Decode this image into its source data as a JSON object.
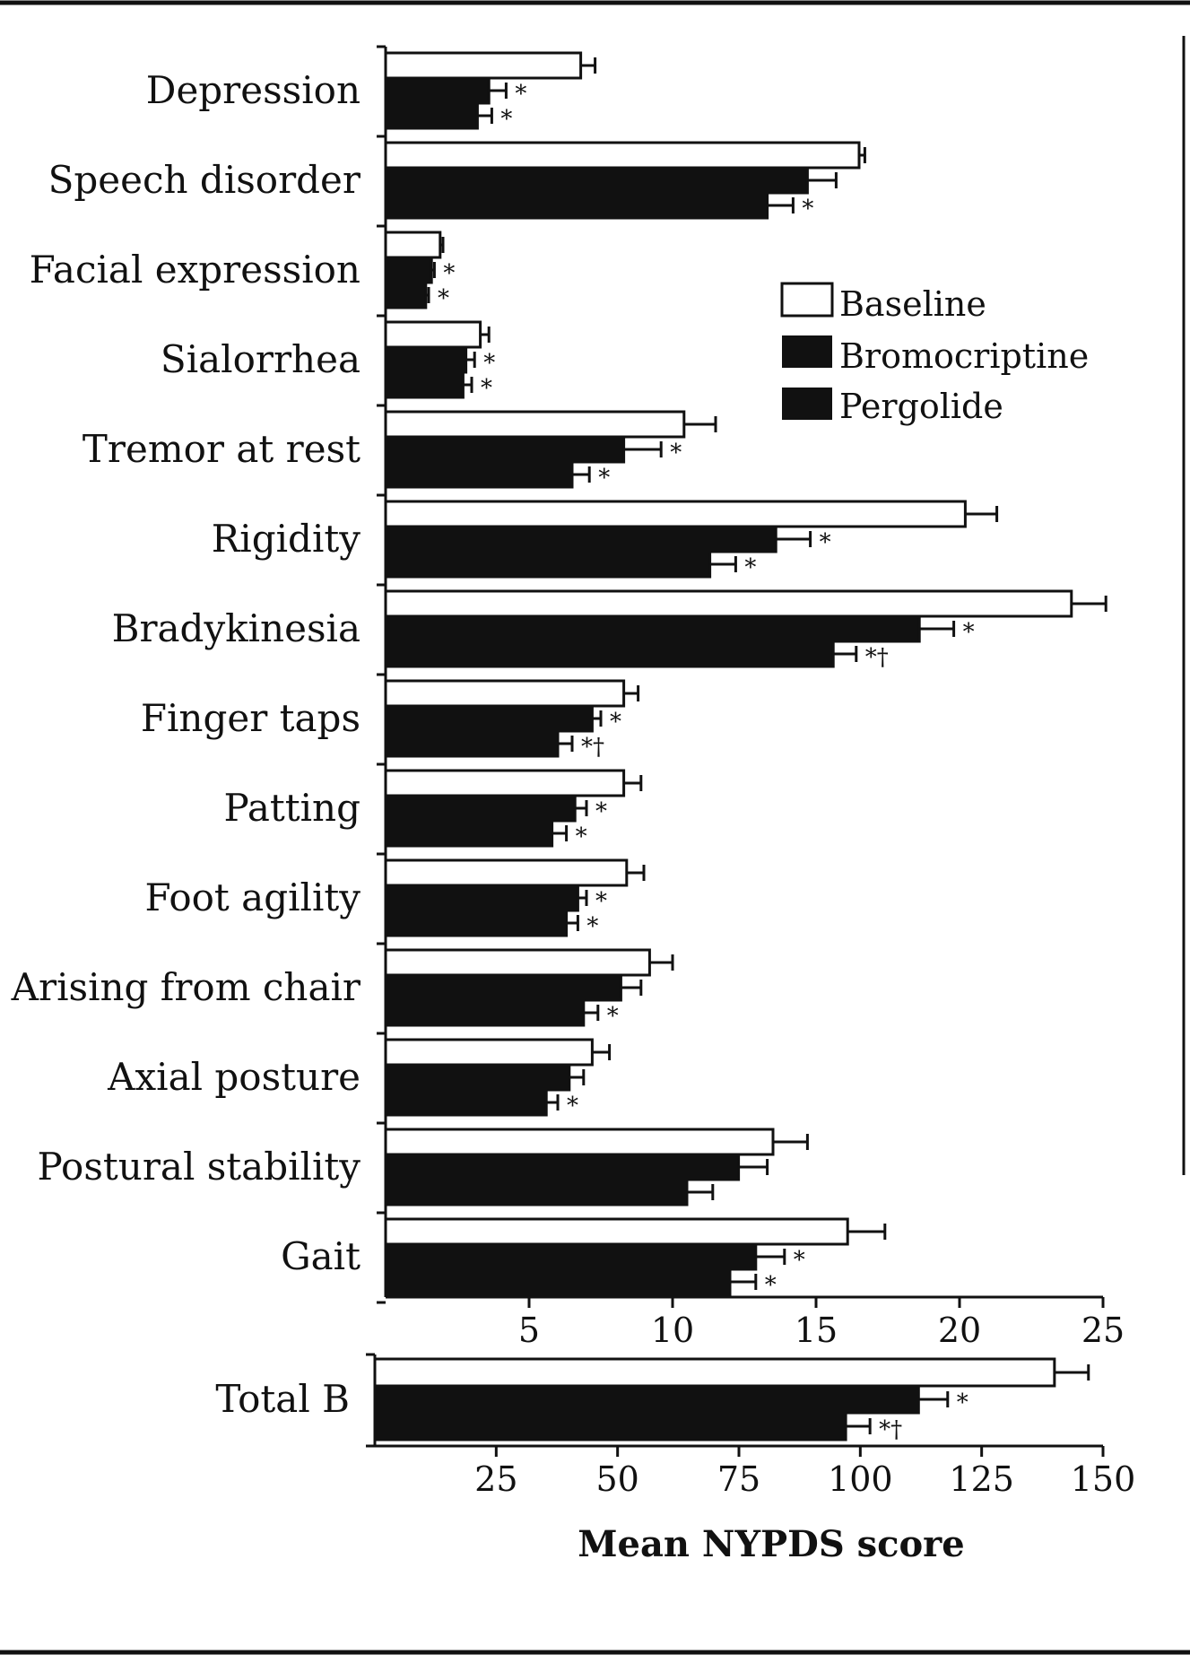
{
  "chart_data": [
    {
      "type": "bar",
      "orientation": "horizontal",
      "categories": [
        "Depression",
        "Speech disorder",
        "Facial expression",
        "Sialorrhea",
        "Tremor at rest",
        "Rigidity",
        "Bradykinesia",
        "Finger taps",
        "Patting",
        "Foot agility",
        "Arising from chair",
        "Axial posture",
        "Postural stability",
        "Gait"
      ],
      "series": [
        {
          "name": "Baseline",
          "color": "#ffffff",
          "values": [
            6.8,
            16.5,
            1.9,
            3.3,
            10.4,
            20.2,
            23.9,
            8.3,
            8.3,
            8.4,
            9.2,
            7.2,
            13.5,
            16.1
          ],
          "errors": [
            0.5,
            0.2,
            0.1,
            0.3,
            1.1,
            1.1,
            1.2,
            0.5,
            0.6,
            0.6,
            0.8,
            0.6,
            1.2,
            1.3
          ]
        },
        {
          "name": "Bromocriptine",
          "color": "#111111",
          "values": [
            3.6,
            14.7,
            1.6,
            2.8,
            8.3,
            13.6,
            18.6,
            7.2,
            6.6,
            6.7,
            8.2,
            6.4,
            12.3,
            12.9
          ],
          "errors": [
            0.6,
            1.0,
            0.1,
            0.3,
            1.3,
            1.2,
            1.2,
            0.3,
            0.4,
            0.3,
            0.7,
            0.5,
            1.0,
            1.0
          ]
        },
        {
          "name": "Pergolide",
          "color": "#111111",
          "values": [
            3.2,
            13.3,
            1.4,
            2.7,
            6.5,
            11.3,
            15.6,
            6.0,
            5.8,
            6.3,
            6.9,
            5.6,
            10.5,
            12.0
          ],
          "errors": [
            0.5,
            0.9,
            0.1,
            0.3,
            0.6,
            0.9,
            0.8,
            0.5,
            0.5,
            0.4,
            0.5,
            0.4,
            0.9,
            0.9
          ]
        }
      ],
      "significance": [
        [
          "",
          "",
          "",
          "",
          "",
          "",
          "",
          "",
          "",
          "",
          "",
          "",
          "",
          ""
        ],
        [
          "*",
          "",
          "*",
          "*",
          "*",
          "*",
          "*",
          "*",
          "*",
          "*",
          "",
          "",
          "",
          "*"
        ],
        [
          "*",
          "*",
          "*",
          "*",
          "*",
          "*",
          "*†",
          "*†",
          "*",
          "*",
          "*",
          "*",
          "",
          "*"
        ]
      ],
      "xlim": [
        0,
        25
      ],
      "xticks": [
        5,
        10,
        15,
        20,
        25
      ],
      "legend": {
        "position": "top-right",
        "entries": [
          "Baseline",
          "Bromocriptine",
          "Pergolide"
        ]
      }
    },
    {
      "type": "bar",
      "orientation": "horizontal",
      "categories": [
        "Total B"
      ],
      "series": [
        {
          "name": "Baseline",
          "values": [
            140
          ],
          "errors": [
            7
          ]
        },
        {
          "name": "Bromocriptine",
          "values": [
            112
          ],
          "errors": [
            6
          ]
        },
        {
          "name": "Pergolide",
          "values": [
            97
          ],
          "errors": [
            5
          ]
        }
      ],
      "significance": [
        [
          ""
        ],
        [
          "*"
        ],
        [
          "*†"
        ]
      ],
      "xlim": [
        0,
        150
      ],
      "xticks": [
        25,
        50,
        75,
        100,
        125,
        150
      ],
      "xlabel": "Mean NYPDS score"
    }
  ]
}
